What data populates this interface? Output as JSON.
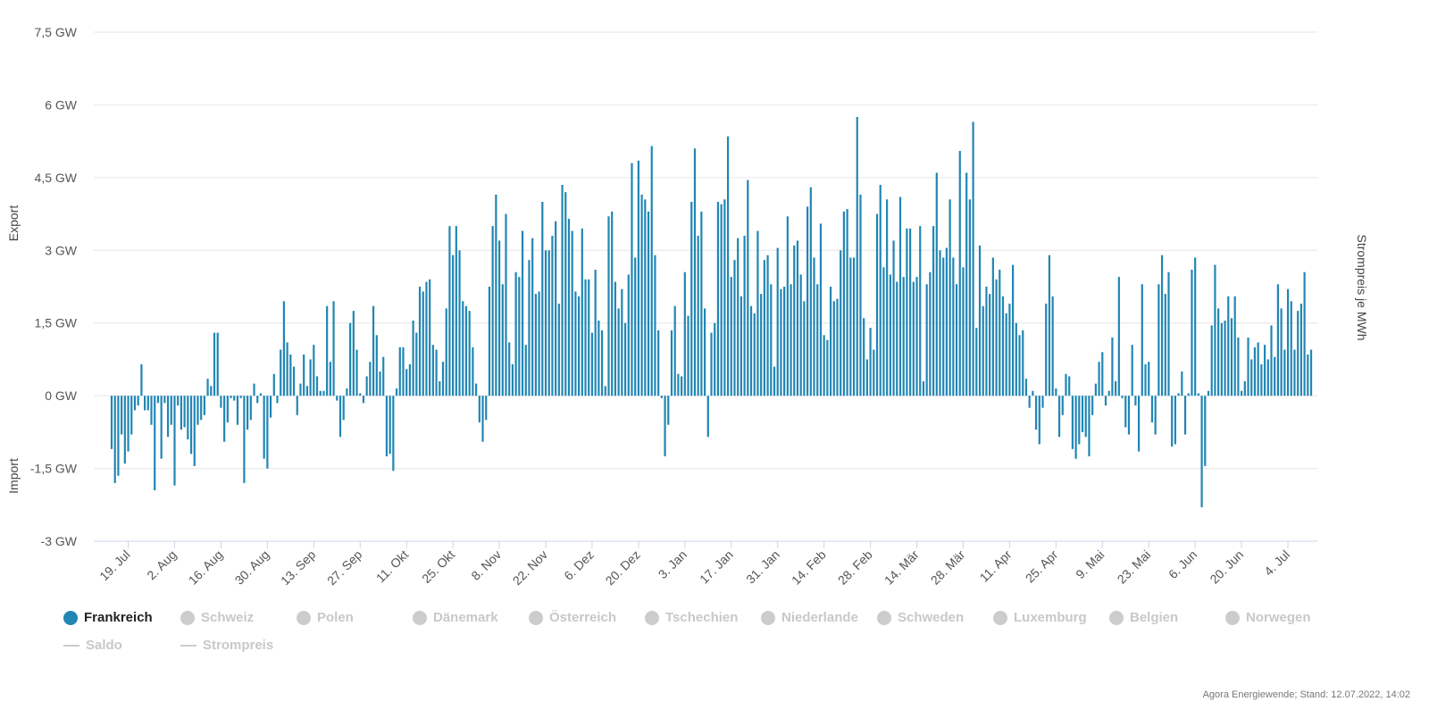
{
  "colors": {
    "bar": "#2186b4",
    "grid": "#e6e6e6",
    "axis": "#ccd6eb",
    "inactive": "#cccccc"
  },
  "legend": {
    "items": [
      {
        "label": "Frankreich",
        "active": true,
        "symbol": "circle",
        "color": "#2186b4"
      },
      {
        "label": "Schweiz",
        "active": false,
        "symbol": "circle"
      },
      {
        "label": "Polen",
        "active": false,
        "symbol": "circle"
      },
      {
        "label": "Dänemark",
        "active": false,
        "symbol": "circle"
      },
      {
        "label": "Österreich",
        "active": false,
        "symbol": "circle"
      },
      {
        "label": "Tschechien",
        "active": false,
        "symbol": "circle"
      },
      {
        "label": "Niederlande",
        "active": false,
        "symbol": "circle"
      },
      {
        "label": "Schweden",
        "active": false,
        "symbol": "circle"
      },
      {
        "label": "Luxemburg",
        "active": false,
        "symbol": "circle"
      },
      {
        "label": "Belgien",
        "active": false,
        "symbol": "circle"
      },
      {
        "label": "Norwegen",
        "active": false,
        "symbol": "circle"
      },
      {
        "label": "Saldo",
        "active": false,
        "symbol": "line"
      },
      {
        "label": "Strompreis",
        "active": false,
        "symbol": "line"
      }
    ]
  },
  "credit": "Agora Energiewende; Stand: 12.07.2022, 14:02",
  "chart_data": {
    "type": "bar",
    "x_start": "2021-07-14",
    "x_end": "2022-07-11",
    "ylim": [
      -3,
      7.5
    ],
    "y_ticks": [
      -3,
      -1.5,
      0,
      1.5,
      3,
      4.5,
      6,
      7.5
    ],
    "y_tick_labels": [
      "-3 GW",
      "-1,5 GW",
      "0 GW",
      "1,5 GW",
      "3 GW",
      "4,5 GW",
      "6 GW",
      "7,5 GW"
    ],
    "ylabel_top": "Export",
    "ylabel_bottom": "Import",
    "ylabel_right": "Strompreis je MWh",
    "grid": true,
    "x_ticks": [
      "2021-07-19",
      "2021-08-02",
      "2021-08-16",
      "2021-08-30",
      "2021-09-13",
      "2021-09-27",
      "2021-10-11",
      "2021-10-25",
      "2021-11-08",
      "2021-11-22",
      "2021-12-06",
      "2021-12-20",
      "2022-01-03",
      "2022-01-17",
      "2022-01-31",
      "2022-02-14",
      "2022-02-28",
      "2022-03-14",
      "2022-03-28",
      "2022-04-11",
      "2022-04-25",
      "2022-05-09",
      "2022-05-23",
      "2022-06-06",
      "2022-06-20",
      "2022-07-04"
    ],
    "x_tick_labels": [
      "19. Jul",
      "2. Aug",
      "16. Aug",
      "30. Aug",
      "13. Sep",
      "27. Sep",
      "11. Okt",
      "25. Okt",
      "8. Nov",
      "22. Nov",
      "6. Dez",
      "20. Dez",
      "3. Jan",
      "17. Jan",
      "31. Jan",
      "14. Feb",
      "28. Feb",
      "14. Mär",
      "28. Mär",
      "11. Apr",
      "25. Apr",
      "9. Mai",
      "23. Mai",
      "6. Jun",
      "20. Jun",
      "4. Jul"
    ],
    "series": [
      {
        "name": "Frankreich",
        "unit": "GW",
        "values": [
          -1.1,
          -1.8,
          -1.65,
          -0.8,
          -1.4,
          -1.15,
          -0.8,
          -0.3,
          -0.2,
          0.65,
          -0.3,
          -0.3,
          -0.6,
          -1.95,
          -0.15,
          -1.3,
          -0.15,
          -0.85,
          -0.6,
          -1.85,
          -0.2,
          -0.7,
          -0.65,
          -0.9,
          -1.2,
          -1.45,
          -0.6,
          -0.5,
          -0.4,
          0.35,
          0.2,
          1.3,
          1.3,
          -0.25,
          -0.95,
          -0.55,
          -0.05,
          -0.1,
          -0.6,
          -0.05,
          -1.8,
          -0.7,
          -0.5,
          0.25,
          -0.15,
          0.05,
          -1.3,
          -1.5,
          -0.45,
          0.45,
          -0.15,
          0.95,
          1.95,
          1.1,
          0.85,
          0.6,
          -0.4,
          0.25,
          0.85,
          0.2,
          0.75,
          1.05,
          0.4,
          0.1,
          0.1,
          1.85,
          0.7,
          1.95,
          -0.1,
          -0.85,
          -0.5,
          0.15,
          1.5,
          1.75,
          0.95,
          0.05,
          -0.15,
          0.4,
          0.7,
          1.85,
          1.25,
          0.5,
          0.8,
          -1.25,
          -1.2,
          -1.55,
          0.15,
          1.0,
          1.0,
          0.55,
          0.65,
          1.55,
          1.3,
          2.25,
          2.15,
          2.35,
          2.4,
          1.05,
          0.95,
          0.3,
          0.7,
          1.8,
          3.5,
          2.9,
          3.5,
          3.0,
          1.95,
          1.85,
          1.75,
          1.0,
          0.25,
          -0.55,
          -0.95,
          -0.5,
          2.25,
          3.5,
          4.15,
          3.2,
          2.3,
          3.75,
          1.1,
          0.65,
          2.55,
          2.45,
          3.4,
          1.05,
          2.8,
          3.25,
          2.1,
          2.15,
          4.0,
          3.0,
          3.0,
          3.3,
          3.6,
          1.9,
          4.35,
          4.2,
          3.65,
          3.4,
          2.15,
          2.05,
          3.45,
          2.4,
          2.4,
          1.3,
          2.6,
          1.55,
          1.35,
          0.2,
          3.7,
          3.8,
          2.35,
          1.8,
          2.2,
          1.5,
          2.5,
          4.8,
          2.85,
          4.85,
          4.15,
          4.05,
          3.8,
          5.15,
          2.9,
          1.35,
          -0.05,
          -1.25,
          -0.6,
          1.35,
          1.85,
          0.45,
          0.4,
          2.55,
          1.65,
          4.0,
          5.1,
          3.3,
          3.8,
          1.8,
          -0.85,
          1.3,
          1.5,
          4.0,
          3.95,
          4.05,
          5.35,
          2.45,
          2.8,
          3.25,
          2.05,
          3.3,
          4.45,
          1.85,
          1.7,
          3.4,
          2.1,
          2.8,
          2.9,
          2.3,
          0.6,
          3.05,
          2.2,
          2.25,
          3.7,
          2.3,
          3.1,
          3.2,
          2.5,
          1.95,
          3.9,
          4.3,
          2.85,
          2.3,
          3.55,
          1.25,
          1.15,
          2.25,
          1.95,
          2.0,
          3.0,
          3.8,
          3.85,
          2.85,
          2.85,
          5.75,
          4.15,
          1.6,
          0.75,
          1.4,
          0.95,
          3.75,
          4.35,
          2.65,
          4.05,
          2.5,
          3.2,
          2.35,
          4.1,
          2.45,
          3.45,
          3.45,
          2.35,
          2.45,
          3.5,
          0.3,
          2.3,
          2.55,
          3.5,
          4.6,
          3.0,
          2.85,
          3.05,
          4.05,
          2.85,
          2.3,
          5.05,
          2.65,
          4.6,
          4.05,
          5.65,
          1.4,
          3.1,
          1.85,
          2.25,
          2.1,
          2.85,
          2.4,
          2.6,
          2.05,
          1.7,
          1.9,
          2.7,
          1.5,
          1.25,
          1.35,
          0.35,
          -0.25,
          0.1,
          -0.7,
          -1.0,
          -0.25,
          1.9,
          2.9,
          2.05,
          0.15,
          -0.85,
          -0.4,
          0.45,
          0.4,
          -1.1,
          -1.3,
          -1.0,
          -0.75,
          -0.85,
          -1.25,
          -0.4,
          0.25,
          0.7,
          0.9,
          -0.2,
          0.1,
          1.2,
          0.3,
          2.45,
          -0.05,
          -0.65,
          -0.8,
          1.05,
          -0.2,
          -1.15,
          2.3,
          0.65,
          0.7,
          -0.55,
          -0.8,
          2.3,
          2.9,
          2.1,
          2.55,
          -1.05,
          -1.0,
          0.05,
          0.5,
          -0.8,
          0.05,
          2.6,
          2.85,
          0.05,
          -2.3,
          -1.45,
          0.1,
          1.45,
          2.7,
          1.8,
          1.5,
          1.55,
          2.05,
          1.6,
          2.05,
          1.2,
          0.1,
          0.3,
          1.2,
          0.75,
          1.0,
          1.1,
          0.65,
          1.05,
          0.75,
          1.45,
          0.8,
          2.3,
          1.8,
          0.95,
          2.2,
          1.95,
          0.95,
          1.75,
          1.9,
          2.55,
          0.85,
          0.95
        ]
      }
    ]
  }
}
